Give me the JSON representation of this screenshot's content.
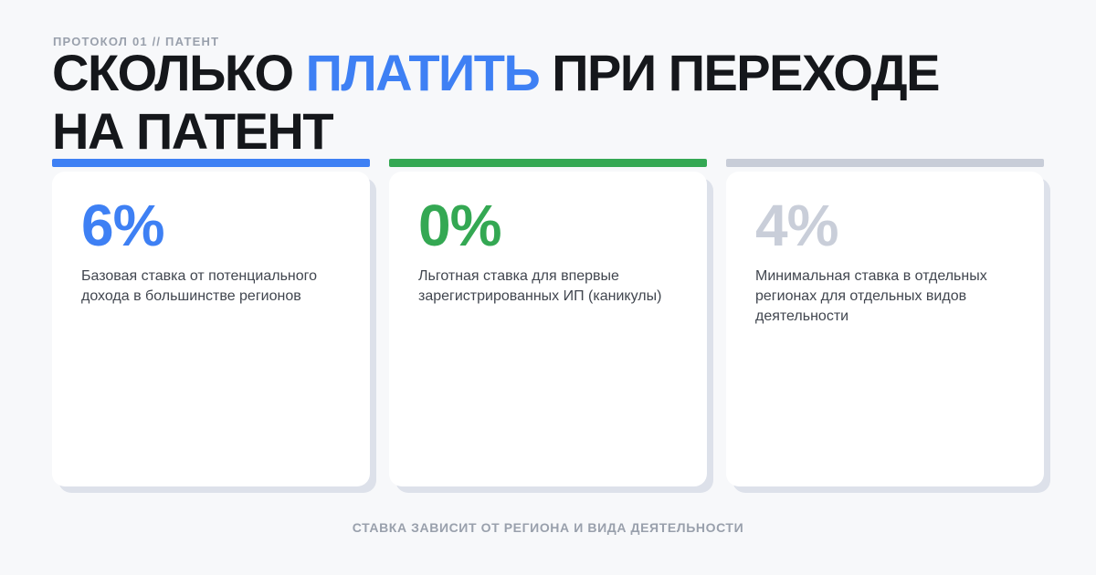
{
  "header": {
    "kicker": "ПРОТОКОЛ 01 // ПАТЕНТ",
    "title_pre": "СКОЛЬКО ",
    "title_highlight": "ПЛАТИТЬ",
    "title_post": " ПРИ ПЕРЕХОДЕ\nНА ПАТЕНТ"
  },
  "cards": [
    {
      "value": "6%",
      "accent": "#3e80f4",
      "value_color": "#3e80f4",
      "description": "Базовая ставка от потенциального дохода в большинстве регионов"
    },
    {
      "value": "0%",
      "accent": "#34a853",
      "value_color": "#34a853",
      "description": "Льготная ставка для впервые зарегистрированных ИП (каникулы)"
    },
    {
      "value": "4%",
      "accent": "#c8cdd8",
      "value_color": "#c9ced9",
      "description": "Минимальная ставка в отдельных регионах для отдельных видов деятельности"
    }
  ],
  "footer": {
    "note": "СТАВКА ЗАВИСИТ ОТ РЕГИОНА И ВИДА ДЕЯТЕЛЬНОСТИ"
  },
  "colors": {
    "background": "#f7f8fa",
    "card": "#ffffff",
    "shadow": "#dde1ea",
    "title": "#15171b",
    "text": "#41464f",
    "muted": "#99a0ac",
    "accent_blue": "#3e80f4",
    "accent_green": "#34a853",
    "accent_gray": "#c8cdd8"
  }
}
